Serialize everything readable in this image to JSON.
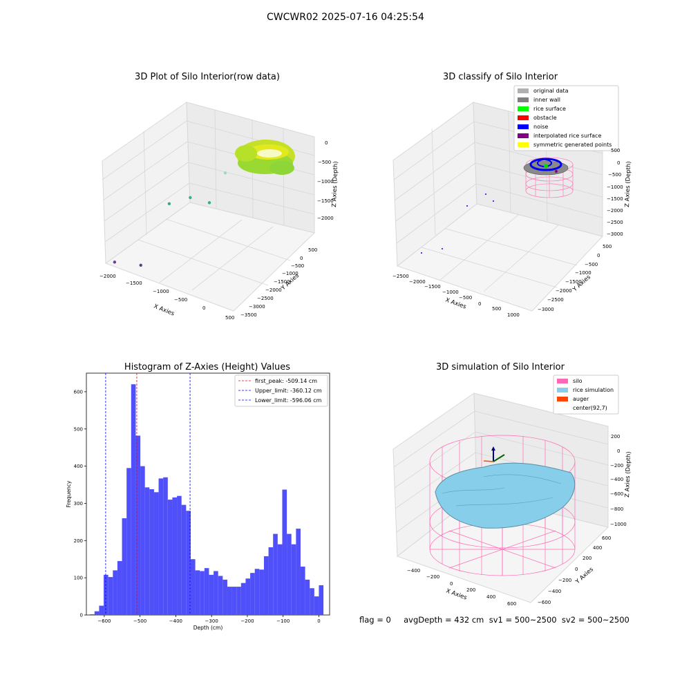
{
  "figure": {
    "suptitle": "CWCWR02 2025-07-16 04:25:54",
    "footer": "flag = 0     avgDepth = 432 cm  sv1 = 500~2500  sv2 = 500~2500"
  },
  "colors": {
    "hist_bar": "#5050fa",
    "first_peak": "#ff0000",
    "limit_line": "#0000ff",
    "silo": "#ff69b4",
    "rice_simulation": "#87ceeb",
    "auger": "#ff4500",
    "original_data": "#b0b0b0",
    "inner_wall": "#808080",
    "rice_surface": "#00ff00",
    "obstacle": "#ff0000",
    "noise": "#0000ff",
    "interpolated_rice_surface": "#800080",
    "symmetric_generated_points": "#ffff00"
  },
  "chart_data": [
    {
      "type": "scatter",
      "title": "3D Plot of Silo Interior(row data)",
      "xlabel": "X Axies",
      "ylabel": "Y Axies",
      "zlabel": "Z Axies (Depth)",
      "x_ticks": [
        "−2000",
        "−1500",
        "−1000",
        "−500",
        "0",
        "500"
      ],
      "y_ticks": [
        "500",
        "0",
        "−500",
        "−1000",
        "−1500",
        "−2000",
        "−2500",
        "−3000",
        "−3500"
      ],
      "z_ticks": [
        "0",
        "−500",
        "−1000",
        "−1500",
        "−2000"
      ],
      "points": [
        {
          "x": -1900,
          "y": -3300,
          "z": -2000
        },
        {
          "x": -1500,
          "y": -3000,
          "z": -2000
        },
        {
          "x": -1500,
          "y": -1500,
          "z": -1200
        },
        {
          "x": -1200,
          "y": -1200,
          "z": -1050
        },
        {
          "x": -900,
          "y": -1000,
          "z": -1100
        },
        {
          "x": -700,
          "y": -700,
          "z": -500
        }
      ]
    },
    {
      "type": "scatter",
      "title": "3D classify of Silo Interior",
      "xlabel": "X Axies",
      "ylabel": "Y Axies",
      "zlabel": "Z Axies (Depth)",
      "x_ticks": [
        "−2500",
        "−2000",
        "−1500",
        "−1000",
        "−500",
        "0",
        "500",
        "1000"
      ],
      "y_ticks": [
        "500",
        "0",
        "−500",
        "−1000",
        "−1500",
        "−2000",
        "−2500",
        "−3000"
      ],
      "z_ticks": [
        "500",
        "0",
        "−500",
        "−1000",
        "−1500",
        "−2000",
        "−2500",
        "−3000"
      ],
      "legend": [
        "original data",
        "inner wall",
        "rice surface",
        "obstacle",
        "noise",
        "interpolated rice surface",
        "symmetric generated points"
      ],
      "legend_position": "top-right"
    },
    {
      "type": "bar",
      "title": "Histogram of Z-Axies (Height) Values",
      "xlabel": "Depth (cm)",
      "ylabel": "Frequency",
      "xlim": [
        -650,
        30
      ],
      "ylim": [
        0,
        650
      ],
      "x_ticks": [
        -600,
        -500,
        -400,
        -300,
        -200,
        -100,
        0
      ],
      "y_ticks": [
        0,
        100,
        200,
        300,
        400,
        500,
        600
      ],
      "bin_start": -640,
      "bin_width": 12.8,
      "values": [
        2,
        10,
        25,
        108,
        102,
        120,
        145,
        260,
        395,
        620,
        482,
        400,
        343,
        338,
        330,
        367,
        370,
        310,
        316,
        320,
        296,
        280,
        150,
        120,
        118,
        126,
        108,
        118,
        105,
        95,
        76,
        76,
        76,
        86,
        98,
        113,
        124,
        122,
        158,
        182,
        218,
        190,
        337,
        218,
        190,
        232,
        130,
        95,
        72,
        50,
        80
      ],
      "vlines": [
        {
          "x": -509.14,
          "label": "first_peak: -509.14 cm",
          "color": "#ff0000"
        },
        {
          "x": -360.12,
          "label": "Upper_limit: -360.12 cm",
          "color": "#0000ff"
        },
        {
          "x": -596.06,
          "label": "Lower_limit: -596.06 cm",
          "color": "#0000ff"
        }
      ],
      "legend_position": "top-right"
    },
    {
      "type": "area",
      "title": "3D simulation of Silo Interior",
      "xlabel": "X Axies",
      "ylabel": "Y Axies",
      "zlabel": "Z Axies (Depth)",
      "x_ticks": [
        "−400",
        "−200",
        "0",
        "200",
        "400",
        "600"
      ],
      "y_ticks": [
        "600",
        "400",
        "200",
        "0",
        "−200",
        "−400",
        "−600"
      ],
      "z_ticks": [
        "200",
        "0",
        "−200",
        "−400",
        "−600",
        "−800",
        "−1000"
      ],
      "legend": [
        "silo",
        "rice simulation",
        "auger",
        "center(92,7)"
      ],
      "legend_position": "top-right"
    }
  ]
}
